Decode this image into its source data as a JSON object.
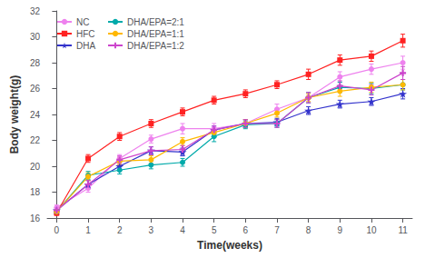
{
  "chart_data": {
    "type": "line",
    "xlabel": "Time(weeks)",
    "ylabel": "Body weight(g)",
    "x": [
      0,
      1,
      2,
      3,
      4,
      5,
      6,
      7,
      8,
      9,
      10,
      11
    ],
    "xlim": [
      -0.3,
      11.3
    ],
    "xticks": [
      0,
      1,
      2,
      3,
      4,
      5,
      6,
      7,
      8,
      9,
      10,
      11
    ],
    "ylim": [
      16,
      32
    ],
    "yticks": [
      16,
      18,
      20,
      22,
      24,
      26,
      28,
      30,
      32
    ],
    "grid": false,
    "legend": "upper left",
    "series": [
      {
        "name": "NC",
        "color": "#EE82EE",
        "marker": "circle",
        "values": [
          16.8,
          18.3,
          20.6,
          22.1,
          22.9,
          22.9,
          23.3,
          24.4,
          25.3,
          26.9,
          27.5,
          28.0
        ],
        "errors": [
          0.2,
          0.3,
          0.3,
          0.3,
          0.4,
          0.4,
          0.3,
          0.4,
          0.4,
          0.4,
          0.4,
          0.5
        ]
      },
      {
        "name": "HFC",
        "color": "#FF2222",
        "marker": "square",
        "values": [
          16.4,
          20.6,
          22.3,
          23.3,
          24.2,
          25.1,
          25.6,
          26.3,
          27.1,
          28.2,
          28.5,
          29.7
        ],
        "errors": [
          0.2,
          0.3,
          0.3,
          0.3,
          0.3,
          0.3,
          0.3,
          0.3,
          0.4,
          0.4,
          0.4,
          0.5
        ]
      },
      {
        "name": "DHA",
        "color": "#3333CC",
        "marker": "star",
        "values": [
          16.6,
          18.6,
          20.0,
          21.2,
          21.1,
          22.8,
          23.3,
          23.4,
          24.3,
          24.8,
          25.0,
          25.6
        ],
        "errors": [
          0.2,
          0.3,
          0.3,
          0.3,
          0.3,
          0.3,
          0.3,
          0.3,
          0.3,
          0.3,
          0.3,
          0.4
        ]
      },
      {
        "name": "DHA/EPA=2:1",
        "color": "#00AAAA",
        "marker": "circle",
        "values": [
          16.5,
          19.3,
          19.7,
          20.1,
          20.3,
          22.3,
          23.2,
          23.3,
          25.3,
          26.1,
          26.0,
          26.3
        ],
        "errors": [
          0.2,
          0.3,
          0.3,
          0.3,
          0.3,
          0.4,
          0.3,
          0.3,
          0.4,
          0.4,
          0.4,
          0.4
        ]
      },
      {
        "name": "DHA/EPA=1:1",
        "color": "#FFB800",
        "marker": "circle",
        "values": [
          16.5,
          19.2,
          20.4,
          20.5,
          21.9,
          22.6,
          23.3,
          24.1,
          25.3,
          25.8,
          26.1,
          26.3
        ],
        "errors": [
          0.2,
          0.3,
          0.3,
          0.3,
          0.3,
          0.3,
          0.3,
          0.3,
          0.3,
          0.4,
          0.4,
          0.4
        ]
      },
      {
        "name": "DHA/EPA=1:2",
        "color": "#CC44CC",
        "marker": "plus",
        "values": [
          16.6,
          18.6,
          20.5,
          21.2,
          21.3,
          22.8,
          23.3,
          23.3,
          25.3,
          26.2,
          25.9,
          27.2
        ],
        "errors": [
          0.2,
          0.3,
          0.3,
          0.3,
          0.3,
          0.3,
          0.3,
          0.3,
          0.4,
          0.4,
          0.4,
          0.5
        ]
      }
    ]
  }
}
